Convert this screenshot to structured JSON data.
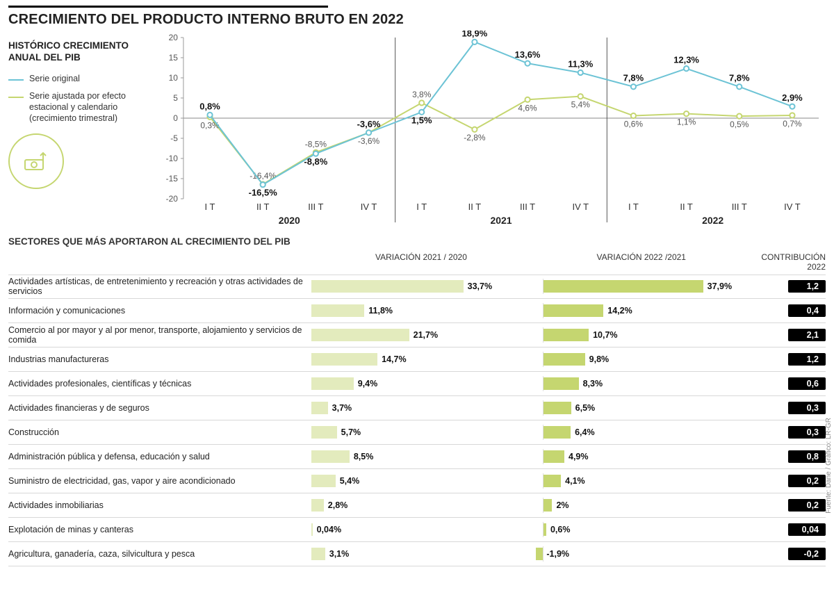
{
  "title": "CRECIMIENTO DEL PRODUCTO INTERNO BRUTO EN 2022",
  "legend": {
    "subtitle": "HISTÓRICO CRECIMIENTO ANUAL DEL PIB",
    "s1": {
      "label": "Serie original",
      "color": "#6cc3d5"
    },
    "s2": {
      "label": "Serie ajustada por efecto estacional y calendario (crecimiento trimestral)",
      "color": "#c5d670"
    }
  },
  "chart": {
    "ylim": [
      -20,
      20
    ],
    "yticks": [
      -20,
      -15,
      -10,
      -5,
      0,
      5,
      10,
      15,
      20
    ],
    "axis_color": "#bdbdbd",
    "grid_color": "#e5e5e5",
    "years": [
      {
        "name": "2020",
        "quarters": [
          "I T",
          "II T",
          "III T",
          "IV T"
        ]
      },
      {
        "name": "2021",
        "quarters": [
          "I T",
          "II T",
          "III T",
          "IV T"
        ]
      },
      {
        "name": "2022",
        "quarters": [
          "I T",
          "II T",
          "III T",
          "IV T"
        ]
      }
    ],
    "serie_original": {
      "color": "#6cc3d5",
      "marker_fill": "#ffffff",
      "points": [
        0.8,
        -16.5,
        -8.8,
        -3.6,
        1.5,
        18.9,
        13.6,
        11.3,
        7.8,
        12.3,
        7.8,
        2.9
      ],
      "labels": [
        "0,8%",
        "-16,5%",
        "-8,8%",
        "-3,6%",
        "1,5%",
        "18,9%",
        "13,6%",
        "11,3%",
        "7,8%",
        "12,3%",
        "7,8%",
        "2,9%"
      ]
    },
    "serie_ajustada": {
      "color": "#c5d670",
      "marker_fill": "#ffffff",
      "points": [
        0.3,
        -16.4,
        -8.5,
        -3.6,
        3.8,
        -2.8,
        4.6,
        5.4,
        0.6,
        1.1,
        0.5,
        0.7
      ],
      "labels": [
        "0,3%",
        "-16,4%",
        "-8,5%",
        "-3,6%",
        "3,8%",
        "-2,8%",
        "4,6%",
        "5,4%",
        "0,6%",
        "1,1%",
        "0,5%",
        "0,7%"
      ]
    }
  },
  "sectors": {
    "title": "SECTORES QUE MÁS APORTARON AL CRECIMIENTO DEL PIB",
    "col_var1": "VARIACIÓN 2021 / 2020",
    "col_var2": "VARIACIÓN 2022 /2021",
    "col_contrib": "CONTRIBUCIÓN 2022",
    "bar1_color": "#e3ebbd",
    "bar2_color": "#c5d670",
    "max_pct": 40,
    "rows": [
      {
        "name": "Actividades artísticas, de entretenimiento y recreación y otras actividades de servicios",
        "v1": 33.7,
        "l1": "33,7%",
        "v2": 37.9,
        "l2": "37,9%",
        "c": "1,2"
      },
      {
        "name": "Información y comunicaciones",
        "v1": 11.8,
        "l1": "11,8%",
        "v2": 14.2,
        "l2": "14,2%",
        "c": "0,4"
      },
      {
        "name": "Comercio al por mayor y al por menor, transporte, alojamiento y servicios de comida",
        "v1": 21.7,
        "l1": "21,7%",
        "v2": 10.7,
        "l2": "10,7%",
        "c": "2,1"
      },
      {
        "name": "Industrias manufactureras",
        "v1": 14.7,
        "l1": "14,7%",
        "v2": 9.8,
        "l2": "9,8%",
        "c": "1,2"
      },
      {
        "name": "Actividades profesionales, científicas y técnicas",
        "v1": 9.4,
        "l1": "9,4%",
        "v2": 8.3,
        "l2": "8,3%",
        "c": "0,6"
      },
      {
        "name": "Actividades financieras y de seguros",
        "v1": 3.7,
        "l1": "3,7%",
        "v2": 6.5,
        "l2": "6,5%",
        "c": "0,3"
      },
      {
        "name": "Construcción",
        "v1": 5.7,
        "l1": "5,7%",
        "v2": 6.4,
        "l2": "6,4%",
        "c": "0,3"
      },
      {
        "name": "Administración pública y defensa, educación y salud",
        "v1": 8.5,
        "l1": "8,5%",
        "v2": 4.9,
        "l2": "4,9%",
        "c": "0,8"
      },
      {
        "name": "Suministro de electricidad, gas, vapor y aire acondicionado",
        "v1": 5.4,
        "l1": "5,4%",
        "v2": 4.1,
        "l2": "4,1%",
        "c": "0,2"
      },
      {
        "name": "Actividades inmobiliarias",
        "v1": 2.8,
        "l1": "2,8%",
        "v2": 2.0,
        "l2": "2%",
        "c": "0,2"
      },
      {
        "name": "Explotación de minas y canteras",
        "v1": 0.04,
        "l1": "0,04%",
        "v2": 0.6,
        "l2": "0,6%",
        "c": "0,04"
      },
      {
        "name": "Agricultura, ganadería, caza, silvicultura y pesca",
        "v1": 3.1,
        "l1": "3,1%",
        "v2": -1.9,
        "l2": "-1,9%",
        "c": "-0,2"
      }
    ]
  },
  "source": "Fuente: Dane / Gráfico: LR-GR"
}
